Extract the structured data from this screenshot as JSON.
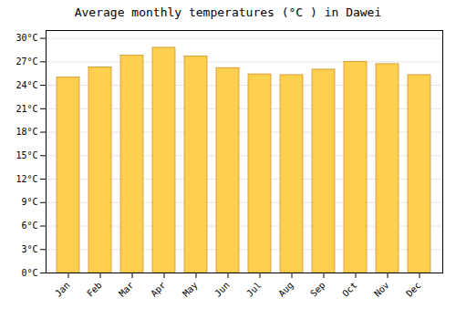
{
  "chart_data": {
    "type": "bar",
    "title": "Average monthly temperatures (°C ) in Dawei",
    "categories": [
      "Jan",
      "Feb",
      "Mar",
      "Apr",
      "May",
      "Jun",
      "Jul",
      "Aug",
      "Sep",
      "Oct",
      "Nov",
      "Dec"
    ],
    "values": [
      25.0,
      26.3,
      27.8,
      28.8,
      27.7,
      26.2,
      25.4,
      25.3,
      26.0,
      27.0,
      26.7,
      25.3
    ],
    "color": "#FFD050",
    "ylim": [
      0,
      31
    ],
    "yticks": [
      {
        "value": 0,
        "label": "0°C"
      },
      {
        "value": 3,
        "label": "3°C"
      },
      {
        "value": 6,
        "label": "6°C"
      },
      {
        "value": 9,
        "label": "9°C"
      },
      {
        "value": 12,
        "label": "12°C"
      },
      {
        "value": 15,
        "label": "15°C"
      },
      {
        "value": 18,
        "label": "18°C"
      },
      {
        "value": 21,
        "label": "21°C"
      },
      {
        "value": 24,
        "label": "24°C"
      },
      {
        "value": 27,
        "label": "27°C"
      },
      {
        "value": 30,
        "label": "30°C"
      }
    ],
    "grid": true
  }
}
